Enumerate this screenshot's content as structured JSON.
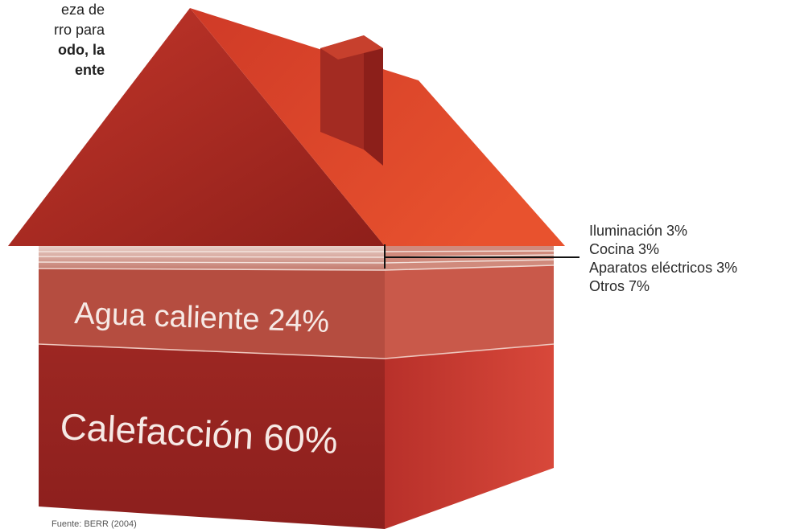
{
  "intro": {
    "line1": "eza de",
    "line2": "rro para",
    "line3_bold": "odo, la",
    "line4_bold": "ente"
  },
  "chart_data": {
    "type": "stacked-house",
    "title": "",
    "segments": [
      {
        "name": "Calefacción",
        "value": 60,
        "label": "Calefacción 60%"
      },
      {
        "name": "Agua caliente",
        "value": 24,
        "label": "Agua caliente 24%"
      },
      {
        "name": "Iluminación",
        "value": 3,
        "label": "Iluminación 3%"
      },
      {
        "name": "Cocina",
        "value": 3,
        "label": "Cocina 3%"
      },
      {
        "name": "Aparatos eléctricos",
        "value": 3,
        "label": "Aparatos eléctricos 3%"
      },
      {
        "name": "Otros",
        "value": 7,
        "label": "Otros 7%"
      }
    ],
    "source": "Fuente: BERR (2004)"
  },
  "colors": {
    "roof_light": "#e0462c",
    "roof_dark": "#a8281e",
    "wall_front": "#9e2823",
    "wall_side": "#c63a2d",
    "band_light": "#d9a59a",
    "band_mid": "#c27064",
    "water_band": "#b85445"
  }
}
